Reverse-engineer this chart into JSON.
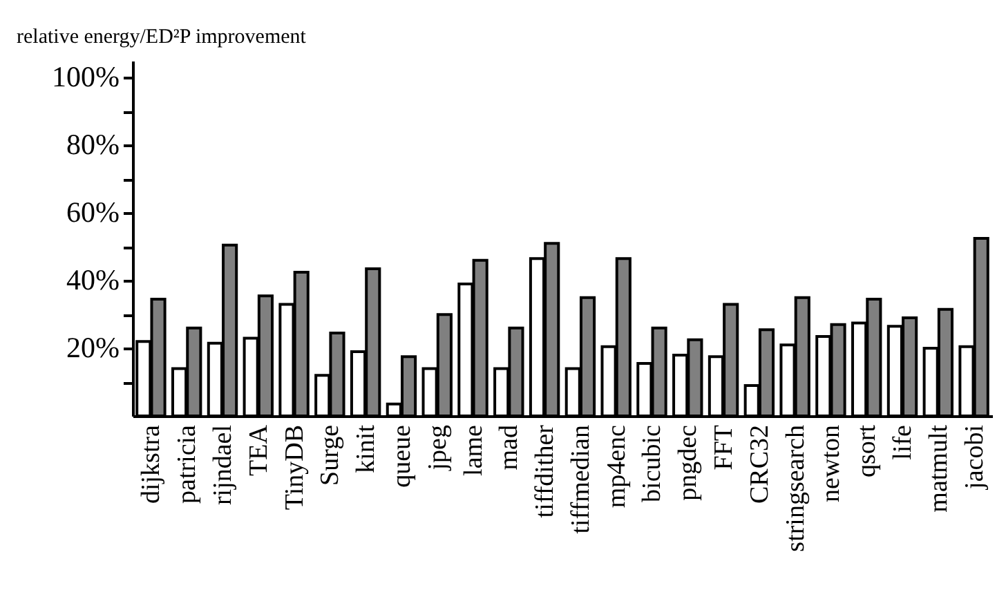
{
  "chart_data": {
    "type": "bar",
    "title": "relative energy/ED²P improvement",
    "categories": [
      "dijkstra",
      "patricia",
      "rijndael",
      "TEA",
      "TinyDB",
      "Surge",
      "kinit",
      "queue",
      "jpeg",
      "lame",
      "mad",
      "tiffdither",
      "tiffmedian",
      "mp4enc",
      "bicubic",
      "pngdec",
      "FFT",
      "CRC32",
      "stringsearch",
      "newton",
      "qsort",
      "life",
      "matmult",
      "jacobi"
    ],
    "series": [
      {
        "color": "#ffffff",
        "values": [
          22,
          14,
          21.5,
          23,
          33,
          12,
          19,
          3.5,
          14,
          39,
          14,
          46.5,
          14,
          20.5,
          15.5,
          18,
          17.5,
          9,
          21,
          23.5,
          27.5,
          26.5,
          20,
          20.5
        ]
      },
      {
        "color": "#808080",
        "values": [
          34.5,
          26,
          50.5,
          35.5,
          42.5,
          24.5,
          43.5,
          17.5,
          30,
          46,
          26,
          51,
          35,
          46.5,
          26,
          22.5,
          33,
          25.5,
          35,
          27,
          34.5,
          29,
          31.5,
          52.5
        ]
      }
    ],
    "ylim": [
      0,
      105
    ],
    "yticks": [
      {
        "value": 10,
        "label": null
      },
      {
        "value": 20,
        "label": "20%"
      },
      {
        "value": 30,
        "label": null
      },
      {
        "value": 40,
        "label": "40%"
      },
      {
        "value": 50,
        "label": null
      },
      {
        "value": 60,
        "label": "60%"
      },
      {
        "value": 70,
        "label": null
      },
      {
        "value": 80,
        "label": "80%"
      },
      {
        "value": 90,
        "label": null
      },
      {
        "value": 100,
        "label": "100%"
      }
    ],
    "grid": false,
    "legend": false
  }
}
